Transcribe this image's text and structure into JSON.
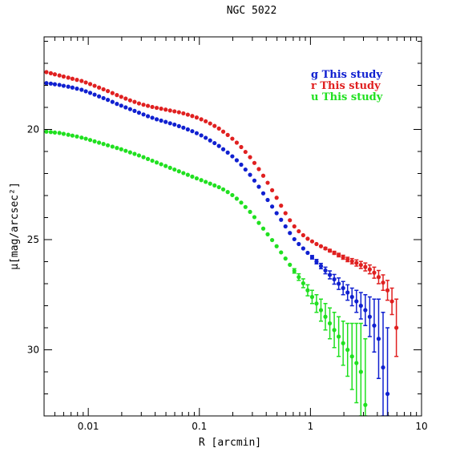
{
  "chart_data": {
    "type": "scatter",
    "title": "NGC 5022",
    "xlabel": "R [arcmin]",
    "ylabel": "μ[mag/arcsec²]",
    "xscale": "log",
    "xlim": [
      0.004,
      10
    ],
    "ylim": [
      33,
      15.8
    ],
    "y_inverted": true,
    "x_ticks": [
      0.01,
      0.1,
      1,
      10
    ],
    "x_tick_labels": [
      "0.01",
      "0.1",
      "1",
      "10"
    ],
    "y_ticks": [
      20,
      25,
      30
    ],
    "y_tick_labels": [
      "20",
      "25",
      "30"
    ],
    "legend_position": "top-right",
    "series": [
      {
        "name": "r This study",
        "color": "#e02020",
        "x": [
          0.0042,
          0.0046,
          0.005,
          0.0055,
          0.006,
          0.0066,
          0.0072,
          0.0079,
          0.0087,
          0.0095,
          0.0104,
          0.0114,
          0.0125,
          0.0137,
          0.015,
          0.0165,
          0.0181,
          0.0198,
          0.0217,
          0.0238,
          0.0261,
          0.0286,
          0.0314,
          0.0344,
          0.0377,
          0.0413,
          0.0453,
          0.0497,
          0.0545,
          0.0597,
          0.0655,
          0.0718,
          0.0787,
          0.0863,
          0.0946,
          0.104,
          0.114,
          0.125,
          0.137,
          0.15,
          0.164,
          0.18,
          0.198,
          0.217,
          0.238,
          0.26,
          0.286,
          0.313,
          0.343,
          0.376,
          0.412,
          0.452,
          0.496,
          0.544,
          0.596,
          0.653,
          0.716,
          0.785,
          0.861,
          0.944,
          1.035,
          1.134,
          1.243,
          1.363,
          1.494,
          1.638,
          1.796,
          1.969,
          2.159,
          2.367,
          2.595,
          2.845,
          3.119,
          3.419,
          3.749,
          4.11,
          4.506,
          4.94,
          5.416,
          5.937
        ],
        "y": [
          17.4,
          17.45,
          17.5,
          17.55,
          17.6,
          17.65,
          17.7,
          17.75,
          17.8,
          17.87,
          17.94,
          18.02,
          18.1,
          18.18,
          18.26,
          18.35,
          18.44,
          18.52,
          18.6,
          18.68,
          18.75,
          18.82,
          18.88,
          18.93,
          18.98,
          19.02,
          19.06,
          19.1,
          19.14,
          19.18,
          19.22,
          19.27,
          19.33,
          19.39,
          19.46,
          19.54,
          19.63,
          19.73,
          19.84,
          19.96,
          20.1,
          20.25,
          20.42,
          20.6,
          20.8,
          21.02,
          21.26,
          21.52,
          21.8,
          22.1,
          22.42,
          22.76,
          23.1,
          23.46,
          23.8,
          24.12,
          24.4,
          24.62,
          24.8,
          24.96,
          25.08,
          25.2,
          25.3,
          25.4,
          25.5,
          25.6,
          25.7,
          25.8,
          25.9,
          25.98,
          26.06,
          26.15,
          26.24,
          26.35,
          26.5,
          26.7,
          26.95,
          27.3,
          27.8,
          29.0
        ],
        "err": [
          0,
          0,
          0,
          0,
          0,
          0,
          0,
          0,
          0,
          0,
          0,
          0,
          0,
          0,
          0,
          0,
          0,
          0,
          0,
          0,
          0,
          0,
          0,
          0,
          0,
          0,
          0,
          0,
          0,
          0,
          0,
          0,
          0,
          0,
          0,
          0,
          0,
          0,
          0,
          0,
          0,
          0,
          0,
          0,
          0,
          0,
          0,
          0,
          0,
          0,
          0,
          0,
          0,
          0,
          0,
          0,
          0,
          0,
          0,
          0,
          0,
          0,
          0,
          0.05,
          0.06,
          0.07,
          0.08,
          0.09,
          0.1,
          0.12,
          0.14,
          0.16,
          0.18,
          0.2,
          0.25,
          0.3,
          0.35,
          0.45,
          0.6,
          1.3
        ]
      },
      {
        "name": "g This study",
        "color": "#1020d0",
        "x": [
          0.0042,
          0.0046,
          0.005,
          0.0055,
          0.006,
          0.0066,
          0.0072,
          0.0079,
          0.0087,
          0.0095,
          0.0104,
          0.0114,
          0.0125,
          0.0137,
          0.015,
          0.0165,
          0.0181,
          0.0198,
          0.0217,
          0.0238,
          0.0261,
          0.0286,
          0.0314,
          0.0344,
          0.0377,
          0.0413,
          0.0453,
          0.0497,
          0.0545,
          0.0597,
          0.0655,
          0.0718,
          0.0787,
          0.0863,
          0.0946,
          0.104,
          0.114,
          0.125,
          0.137,
          0.15,
          0.164,
          0.18,
          0.198,
          0.217,
          0.238,
          0.26,
          0.286,
          0.313,
          0.343,
          0.376,
          0.412,
          0.452,
          0.496,
          0.544,
          0.596,
          0.653,
          0.716,
          0.785,
          0.861,
          0.944,
          1.035,
          1.134,
          1.243,
          1.363,
          1.494,
          1.638,
          1.796,
          1.969,
          2.159,
          2.367,
          2.595,
          2.845,
          3.119,
          3.419,
          3.749,
          4.11,
          4.506,
          4.94
        ],
        "y": [
          17.9,
          17.92,
          17.95,
          17.98,
          18.02,
          18.06,
          18.1,
          18.15,
          18.2,
          18.27,
          18.34,
          18.42,
          18.5,
          18.58,
          18.66,
          18.75,
          18.84,
          18.92,
          19.0,
          19.08,
          19.16,
          19.24,
          19.32,
          19.4,
          19.47,
          19.54,
          19.6,
          19.66,
          19.72,
          19.78,
          19.85,
          19.92,
          20.0,
          20.08,
          20.17,
          20.27,
          20.38,
          20.5,
          20.62,
          20.75,
          20.9,
          21.05,
          21.22,
          21.4,
          21.6,
          21.82,
          22.06,
          22.32,
          22.6,
          22.9,
          23.2,
          23.5,
          23.8,
          24.1,
          24.4,
          24.7,
          24.98,
          25.2,
          25.4,
          25.6,
          25.8,
          26.0,
          26.2,
          26.4,
          26.6,
          26.8,
          27.0,
          27.2,
          27.4,
          27.6,
          27.8,
          28.0,
          28.2,
          28.5,
          28.9,
          29.5,
          30.8,
          32.0
        ],
        "err": [
          0,
          0,
          0,
          0,
          0,
          0,
          0,
          0,
          0,
          0,
          0,
          0,
          0,
          0,
          0,
          0,
          0,
          0,
          0,
          0,
          0,
          0,
          0,
          0,
          0,
          0,
          0,
          0,
          0,
          0,
          0,
          0,
          0,
          0,
          0,
          0,
          0,
          0,
          0,
          0,
          0,
          0,
          0,
          0,
          0,
          0,
          0,
          0,
          0,
          0,
          0,
          0,
          0,
          0,
          0,
          0,
          0,
          0,
          0,
          0,
          0.08,
          0.1,
          0.12,
          0.15,
          0.18,
          0.22,
          0.26,
          0.3,
          0.35,
          0.4,
          0.5,
          0.6,
          0.7,
          0.9,
          1.2,
          1.8,
          2.5,
          3.0
        ]
      },
      {
        "name": "u This study",
        "color": "#20e020",
        "x": [
          0.0042,
          0.0046,
          0.005,
          0.0055,
          0.006,
          0.0066,
          0.0072,
          0.0079,
          0.0087,
          0.0095,
          0.0104,
          0.0114,
          0.0125,
          0.0137,
          0.015,
          0.0165,
          0.0181,
          0.0198,
          0.0217,
          0.0238,
          0.0261,
          0.0286,
          0.0314,
          0.0344,
          0.0377,
          0.0413,
          0.0453,
          0.0497,
          0.0545,
          0.0597,
          0.0655,
          0.0718,
          0.0787,
          0.0863,
          0.0946,
          0.104,
          0.114,
          0.125,
          0.137,
          0.15,
          0.164,
          0.18,
          0.198,
          0.217,
          0.238,
          0.26,
          0.286,
          0.313,
          0.343,
          0.376,
          0.412,
          0.452,
          0.496,
          0.544,
          0.596,
          0.653,
          0.716,
          0.785,
          0.861,
          0.944,
          1.035,
          1.134,
          1.243,
          1.363,
          1.494,
          1.638,
          1.796,
          1.969,
          2.159,
          2.367,
          2.595,
          2.845,
          3.119
        ],
        "y": [
          20.1,
          20.12,
          20.14,
          20.16,
          20.2,
          20.24,
          20.28,
          20.32,
          20.37,
          20.42,
          20.48,
          20.54,
          20.6,
          20.66,
          20.72,
          20.78,
          20.84,
          20.9,
          20.97,
          21.04,
          21.11,
          21.18,
          21.26,
          21.34,
          21.42,
          21.5,
          21.58,
          21.66,
          21.74,
          21.82,
          21.9,
          21.98,
          22.06,
          22.14,
          22.22,
          22.3,
          22.38,
          22.46,
          22.54,
          22.62,
          22.72,
          22.84,
          22.98,
          23.14,
          23.32,
          23.52,
          23.74,
          23.98,
          24.24,
          24.5,
          24.76,
          25.02,
          25.3,
          25.58,
          25.86,
          26.14,
          26.42,
          26.7,
          26.98,
          27.3,
          27.6,
          27.9,
          28.2,
          28.5,
          28.8,
          29.1,
          29.4,
          29.7,
          30.0,
          30.3,
          30.6,
          31.0,
          32.5
        ],
        "err": [
          0,
          0,
          0,
          0,
          0,
          0,
          0,
          0,
          0,
          0,
          0,
          0,
          0,
          0,
          0,
          0,
          0,
          0,
          0,
          0,
          0,
          0,
          0,
          0,
          0,
          0,
          0,
          0,
          0,
          0,
          0,
          0,
          0,
          0,
          0,
          0,
          0,
          0,
          0,
          0,
          0,
          0,
          0,
          0,
          0,
          0,
          0,
          0,
          0,
          0,
          0,
          0,
          0,
          0,
          0,
          0,
          0.1,
          0.15,
          0.2,
          0.25,
          0.3,
          0.4,
          0.5,
          0.6,
          0.7,
          0.8,
          0.9,
          1.0,
          1.2,
          1.5,
          1.8,
          2.2,
          3.0
        ]
      }
    ]
  }
}
